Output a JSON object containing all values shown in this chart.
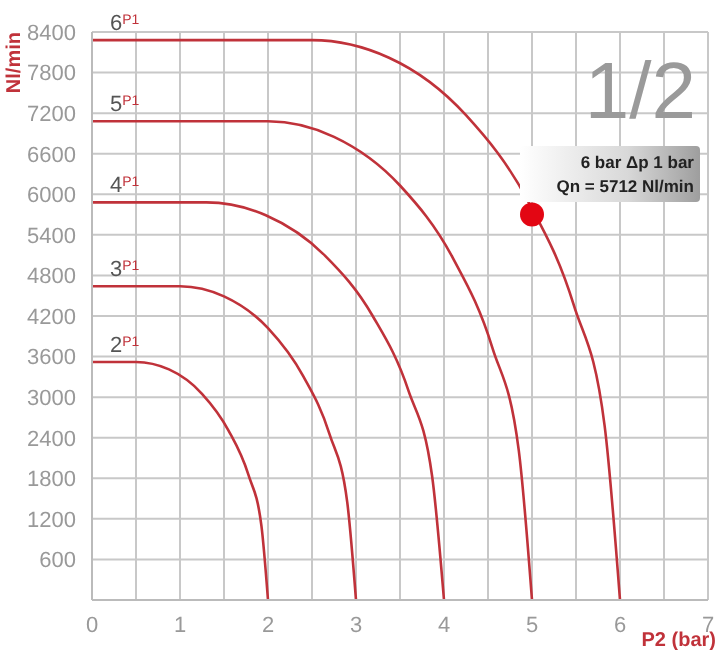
{
  "chart_data": {
    "type": "line",
    "xlabel": "P2 (bar)",
    "ylabel": "Nl/min",
    "xlim": [
      0,
      7
    ],
    "xticks": [
      0,
      {
        "value": 0.5,
        "label": null
      },
      1,
      {
        "value": 1.5,
        "label": null
      },
      2,
      {
        "value": 2.5,
        "label": null
      },
      3,
      {
        "value": 3.5,
        "label": null
      },
      4,
      {
        "value": 4.5,
        "label": null
      },
      5,
      {
        "value": 5.5,
        "label": null
      },
      6,
      {
        "value": 6.5,
        "label": null
      },
      7
    ],
    "ylim": [
      0,
      8400
    ],
    "yticks": [
      600,
      1200,
      1800,
      2400,
      3000,
      3600,
      4200,
      4800,
      5400,
      6000,
      6600,
      7200,
      7800,
      8400
    ],
    "grid": true,
    "legend": false,
    "marker": "none",
    "series": [
      {
        "name": "2$^{P1}$",
        "color": "#c0323a",
        "x": [
          0,
          0.5,
          0.875,
          1.25,
          1.55,
          1.775,
          1.925,
          2
        ],
        "values": [
          3520,
          3520,
          3410,
          3050,
          2510,
          1860,
          1100,
          0
        ]
      },
      {
        "name": "3$^{P1}$",
        "color": "#c0323a",
        "x": [
          0,
          1,
          1.5,
          2,
          2.4,
          2.7,
          2.9,
          3
        ],
        "values": [
          4640,
          4640,
          4490,
          4020,
          3310,
          2450,
          1450,
          0
        ]
      },
      {
        "name": "4$^{P1}$",
        "color": "#c0323a",
        "x": [
          0,
          1.3,
          1.975,
          2.65,
          3.19,
          3.595,
          3.865,
          4
        ],
        "values": [
          5880,
          5880,
          5690,
          5090,
          4200,
          3100,
          1830,
          0
        ]
      },
      {
        "name": "5$^{P1}$",
        "color": "#c0323a",
        "x": [
          0,
          2,
          2.75,
          3.5,
          4.1,
          4.55,
          4.85,
          5
        ],
        "values": [
          7080,
          7080,
          6850,
          6130,
          5060,
          3730,
          2210,
          0
        ]
      },
      {
        "name": "6$^{P1}$",
        "color": "#c0323a",
        "x": [
          0,
          2.5,
          3.375,
          4.25,
          4.95,
          5.475,
          5.825,
          6
        ],
        "values": [
          8280,
          8280,
          8020,
          7170,
          5910,
          4360,
          2580,
          0
        ]
      },
      {
        "type": "scatter",
        "color": "#e30613",
        "marker": "circle",
        "x": [
          5
        ],
        "values": [
          5700
        ]
      }
    ],
    "annotations": [
      "1/2",
      {
        "text": "6 bar Δp 1 bar\nQn = 5712 Nl/min",
        "x": 5,
        "y": 5700
      }
    ]
  }
}
